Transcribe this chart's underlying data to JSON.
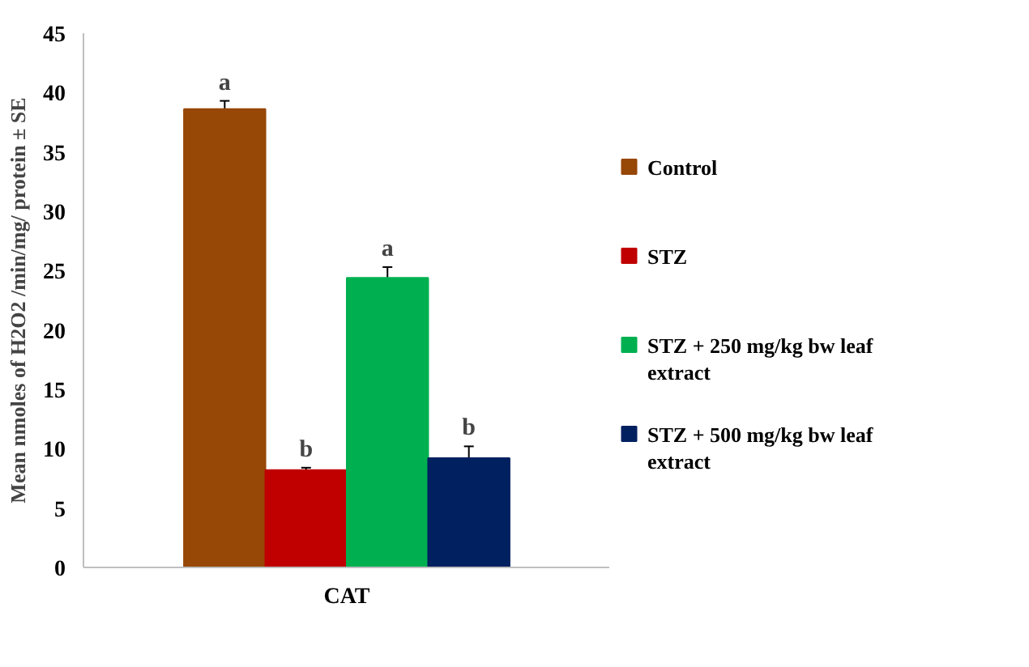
{
  "chart_data": {
    "type": "bar",
    "categories": [
      "CAT"
    ],
    "ylabel": "Mean nmoles of H2O2 /min/mg/ protein ± SE",
    "ylim": [
      0,
      45
    ],
    "yticks": [
      0,
      5,
      10,
      15,
      20,
      25,
      30,
      35,
      40,
      45
    ],
    "grid": false,
    "legend": "right",
    "series": [
      {
        "name": "Control",
        "color": "#974706",
        "values": [
          38.6
        ],
        "errors": [
          0.7
        ],
        "value_labels": [
          "a"
        ]
      },
      {
        "name": "STZ",
        "color": "#c00000",
        "values": [
          8.2
        ],
        "errors": [
          0.2
        ],
        "value_labels": [
          "b"
        ]
      },
      {
        "name": "STZ + 250 mg/kg bw leaf extract",
        "color": "#00b050",
        "values": [
          24.4
        ],
        "errors": [
          0.9
        ],
        "value_labels": [
          "a"
        ]
      },
      {
        "name": "STZ + 500 mg/kg bw leaf extract",
        "color": "#002060",
        "values": [
          9.2
        ],
        "errors": [
          1.0
        ],
        "value_labels": [
          "b"
        ]
      }
    ]
  }
}
